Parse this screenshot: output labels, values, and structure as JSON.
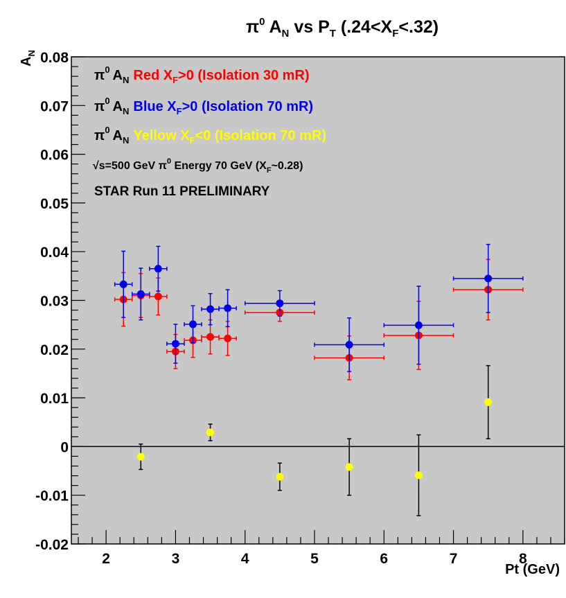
{
  "chart_data": {
    "type": "scatter",
    "title": "π⁰ A_N vs P_T (.24<X_F<.32)",
    "title_parts": {
      "pi": "π",
      "zero": "0",
      "a": "A",
      "n": "N",
      "vs": " vs P",
      "t": "T",
      "range1": " (.24<X",
      "f": "F",
      "range2": "<.32)"
    },
    "xlabel": "Pt (GeV)",
    "ylabel": "A_N",
    "ylabel_parts": {
      "a": "A",
      "n": "N"
    },
    "xlim": [
      1.5,
      8.6
    ],
    "ylim": [
      -0.02,
      0.08
    ],
    "x_ticks": [
      2,
      3,
      4,
      5,
      6,
      7,
      8
    ],
    "y_ticks": [
      -0.02,
      -0.01,
      0,
      0.01,
      0.02,
      0.03,
      0.04,
      0.05,
      0.06,
      0.07,
      0.08
    ],
    "x_tick_labels": [
      "2",
      "3",
      "4",
      "5",
      "6",
      "7",
      "8"
    ],
    "y_tick_labels": [
      "-0.02",
      "-0.01",
      "0",
      "0.01",
      "0.02",
      "0.03",
      "0.04",
      "0.05",
      "0.06",
      "0.07",
      "0.08"
    ],
    "zero_line": true,
    "grid": false,
    "legend_position": "top-left",
    "series": [
      {
        "key": "red",
        "color": "#ff0000",
        "legend": {
          "pi": "π",
          "zero": "0",
          "a": "A",
          "n": "N",
          "t1": "Red X",
          "f": "F",
          "t2": ">0 (Isolation 30 mR)"
        },
        "points": [
          {
            "x": 2.25,
            "y": 0.0302,
            "xerr": 0.125,
            "yerr": 0.0055
          },
          {
            "x": 2.5,
            "y": 0.031,
            "xerr": 0.125,
            "yerr": 0.0045
          },
          {
            "x": 2.75,
            "y": 0.0308,
            "xerr": 0.125,
            "yerr": 0.0038
          },
          {
            "x": 3.0,
            "y": 0.0195,
            "xerr": 0.125,
            "yerr": 0.0035
          },
          {
            "x": 3.25,
            "y": 0.0218,
            "xerr": 0.125,
            "yerr": 0.0035
          },
          {
            "x": 3.5,
            "y": 0.0225,
            "xerr": 0.125,
            "yerr": 0.0035
          },
          {
            "x": 3.75,
            "y": 0.0222,
            "xerr": 0.125,
            "yerr": 0.0035
          },
          {
            "x": 4.5,
            "y": 0.0275,
            "xerr": 0.5,
            "yerr": 0.0018
          },
          {
            "x": 5.5,
            "y": 0.0182,
            "xerr": 0.5,
            "yerr": 0.0045
          },
          {
            "x": 6.5,
            "y": 0.0228,
            "xerr": 0.5,
            "yerr": 0.007
          },
          {
            "x": 7.5,
            "y": 0.0322,
            "xerr": 0.5,
            "yerr": 0.0062
          }
        ]
      },
      {
        "key": "blue",
        "color": "#0000ee",
        "legend": {
          "pi": "π",
          "zero": "0",
          "a": "A",
          "n": "N",
          "t1": "Blue X",
          "f": "F",
          "t2": ">0 (Isolation 70 mR)"
        },
        "points": [
          {
            "x": 2.25,
            "y": 0.0333,
            "xerr": 0.125,
            "yerr": 0.0068
          },
          {
            "x": 2.5,
            "y": 0.0313,
            "xerr": 0.125,
            "yerr": 0.0053
          },
          {
            "x": 2.75,
            "y": 0.0365,
            "xerr": 0.125,
            "yerr": 0.0046
          },
          {
            "x": 3.0,
            "y": 0.0211,
            "xerr": 0.125,
            "yerr": 0.004
          },
          {
            "x": 3.25,
            "y": 0.0251,
            "xerr": 0.125,
            "yerr": 0.0038
          },
          {
            "x": 3.5,
            "y": 0.0282,
            "xerr": 0.125,
            "yerr": 0.0032
          },
          {
            "x": 3.75,
            "y": 0.0284,
            "xerr": 0.125,
            "yerr": 0.0038
          },
          {
            "x": 4.5,
            "y": 0.0294,
            "xerr": 0.5,
            "yerr": 0.0026
          },
          {
            "x": 5.5,
            "y": 0.0209,
            "xerr": 0.5,
            "yerr": 0.0055
          },
          {
            "x": 6.5,
            "y": 0.0249,
            "xerr": 0.5,
            "yerr": 0.008
          },
          {
            "x": 7.5,
            "y": 0.0345,
            "xerr": 0.5,
            "yerr": 0.007
          }
        ]
      },
      {
        "key": "yellow",
        "color": "#ffff00",
        "error_color": "#000000",
        "legend": {
          "pi": "π",
          "zero": "0",
          "a": "A",
          "n": "N",
          "t1": "Yellow X",
          "f": "F",
          "t2": "<0 (Isolation 70 mR)"
        },
        "points": [
          {
            "x": 2.5,
            "y": -0.0021,
            "xerr": 0,
            "yerr": 0.0026
          },
          {
            "x": 3.5,
            "y": 0.0029,
            "xerr": 0,
            "yerr": 0.0017
          },
          {
            "x": 4.5,
            "y": -0.0062,
            "xerr": 0,
            "yerr": 0.0028
          },
          {
            "x": 5.5,
            "y": -0.0042,
            "xerr": 0,
            "yerr": 0.0058
          },
          {
            "x": 6.5,
            "y": -0.0059,
            "xerr": 0,
            "yerr": 0.0083
          },
          {
            "x": 7.5,
            "y": 0.0091,
            "xerr": 0,
            "yerr": 0.0075
          }
        ]
      }
    ],
    "annotations": {
      "energy": {
        "sqrt": "√",
        "s_text": "s=500 GeV ",
        "pi": "π",
        "zero": "0",
        "t1": " Energy 70 GeV (X",
        "f": "F",
        "t2": "~0.28)"
      },
      "star": "STAR Run 11 PRELIMINARY"
    },
    "colors": {
      "plot_background": "#c8c8c8",
      "frame_background": "#ffffff",
      "axis": "#000000"
    }
  }
}
